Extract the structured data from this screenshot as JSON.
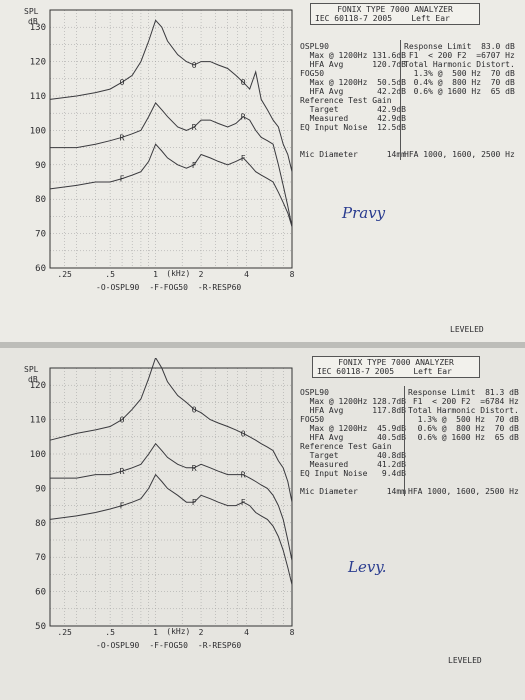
{
  "reports": [
    {
      "header": {
        "title": "FONIX TYPE 7000 ANALYZER",
        "standard": "IEC 60118-7 2005",
        "ear": "Left Ear"
      },
      "chart_data": {
        "type": "line",
        "ylabel_top": "SPL",
        "ylabel_unit": "dB",
        "xlabel": "(kHz)",
        "x_scale": "log",
        "xlim": [
          0.2,
          8
        ],
        "ylim": [
          60,
          135
        ],
        "y_ticks": [
          60,
          70,
          80,
          90,
          100,
          110,
          120,
          130
        ],
        "x_ticks": [
          {
            "v": 0.25,
            "label": ".25"
          },
          {
            "v": 0.5,
            "label": ".5"
          },
          {
            "v": 1,
            "label": "1"
          },
          {
            "v": 2,
            "label": "2"
          },
          {
            "v": 4,
            "label": "4"
          },
          {
            "v": 8,
            "label": "8"
          }
        ],
        "grid": true,
        "legend": [
          "-O-OSPL90",
          "-F-FOG50",
          "-R-RESP60"
        ],
        "series": [
          {
            "marker": "O",
            "x": [
              0.2,
              0.3,
              0.4,
              0.5,
              0.6,
              0.7,
              0.8,
              0.9,
              1.0,
              1.1,
              1.2,
              1.4,
              1.6,
              1.8,
              2.0,
              2.3,
              2.6,
              3.0,
              3.4,
              3.8,
              4.2,
              4.6,
              5.0,
              5.5,
              6.0,
              6.5,
              7.0,
              7.5,
              8.0
            ],
            "y": [
              109,
              110,
              111,
              112,
              114,
              116,
              120,
              126,
              132,
              130,
              126,
              122,
              120,
              119,
              120,
              120,
              119,
              118,
              116,
              114,
              112,
              117,
              109,
              106,
              103,
              101,
              96,
              93,
              88
            ]
          },
          {
            "marker": "R",
            "x": [
              0.2,
              0.3,
              0.4,
              0.5,
              0.6,
              0.7,
              0.8,
              0.9,
              1.0,
              1.1,
              1.2,
              1.4,
              1.6,
              1.8,
              2.0,
              2.3,
              2.6,
              3.0,
              3.4,
              3.8,
              4.2,
              4.6,
              5.0,
              5.5,
              6.0,
              6.5,
              7.0,
              7.5,
              8.0
            ],
            "y": [
              95,
              95,
              96,
              97,
              98,
              99,
              100,
              104,
              108,
              106,
              104,
              101,
              100,
              101,
              103,
              103,
              102,
              101,
              102,
              104,
              103,
              100,
              98,
              97,
              96,
              90,
              84,
              78,
              72
            ]
          },
          {
            "marker": "F",
            "x": [
              0.2,
              0.3,
              0.4,
              0.5,
              0.6,
              0.7,
              0.8,
              0.9,
              1.0,
              1.1,
              1.2,
              1.4,
              1.6,
              1.8,
              2.0,
              2.3,
              2.6,
              3.0,
              3.4,
              3.8,
              4.2,
              4.6,
              5.0,
              5.5,
              6.0,
              6.5,
              7.0,
              7.5,
              8.0
            ],
            "y": [
              83,
              84,
              85,
              85,
              86,
              87,
              88,
              91,
              96,
              94,
              92,
              90,
              89,
              90,
              93,
              92,
              91,
              90,
              91,
              92,
              90,
              88,
              87,
              86,
              85,
              82,
              79,
              76,
              72
            ]
          }
        ]
      },
      "info_left": [
        "OSPL90",
        "  Max @ 1200Hz 131.6dB",
        "  HFA Avg      120.7dB",
        "FOG50",
        "  Max @ 1200Hz  50.5dB",
        "  HFA Avg       42.2dB",
        "Reference Test Gain",
        "  Target        42.9dB",
        "  Measured      42.9dB",
        "EQ Input Noise  12.5dB",
        "",
        "",
        "Mic Diameter      14mm"
      ],
      "info_right": [
        "Response Limit  83.0 dB",
        " F1  < 200 F2  =6707 Hz",
        "Total Harmonic Distort.",
        "  1.3% @  500 Hz  70 dB",
        "  0.4% @  800 Hz  70 dB",
        "  0.6% @ 1600 Hz  65 dB",
        "",
        "",
        "",
        "",
        "",
        "",
        "HFA 1000, 1600, 2500 Hz"
      ],
      "handwriting": "Pravy",
      "leveled": "LEVELED"
    },
    {
      "header": {
        "title": "FONIX TYPE 7000 ANALYZER",
        "standard": "IEC 60118-7 2005",
        "ear": "Left Ear"
      },
      "chart_data": {
        "type": "line",
        "ylabel_top": "SPL",
        "ylabel_unit": "dB",
        "xlabel": "(kHz)",
        "x_scale": "log",
        "xlim": [
          0.2,
          8
        ],
        "ylim": [
          50,
          125
        ],
        "y_ticks": [
          50,
          60,
          70,
          80,
          90,
          100,
          110,
          120
        ],
        "x_ticks": [
          {
            "v": 0.25,
            "label": ".25"
          },
          {
            "v": 0.5,
            "label": ".5"
          },
          {
            "v": 1,
            "label": "1"
          },
          {
            "v": 2,
            "label": "2"
          },
          {
            "v": 4,
            "label": "4"
          },
          {
            "v": 8,
            "label": "8"
          }
        ],
        "grid": true,
        "legend": [
          "-O-OSPL90",
          "-F-FOG50",
          "-R-RESP60"
        ],
        "series": [
          {
            "marker": "O",
            "x": [
              0.2,
              0.3,
              0.4,
              0.5,
              0.6,
              0.7,
              0.8,
              0.9,
              1.0,
              1.1,
              1.2,
              1.4,
              1.6,
              1.8,
              2.0,
              2.3,
              2.6,
              3.0,
              3.4,
              3.8,
              4.2,
              4.6,
              5.0,
              5.5,
              6.0,
              6.5,
              7.0,
              7.5,
              8.0
            ],
            "y": [
              104,
              106,
              107,
              108,
              110,
              113,
              116,
              122,
              128,
              125,
              121,
              117,
              115,
              113,
              112,
              110,
              109,
              108,
              107,
              106,
              105,
              104,
              103,
              102,
              101,
              98,
              96,
              92,
              86
            ]
          },
          {
            "marker": "R",
            "x": [
              0.2,
              0.3,
              0.4,
              0.5,
              0.6,
              0.7,
              0.8,
              0.9,
              1.0,
              1.1,
              1.2,
              1.4,
              1.6,
              1.8,
              2.0,
              2.3,
              2.6,
              3.0,
              3.4,
              3.8,
              4.2,
              4.6,
              5.0,
              5.5,
              6.0,
              6.5,
              7.0,
              7.5,
              8.0
            ],
            "y": [
              93,
              93,
              94,
              94,
              95,
              96,
              97,
              100,
              103,
              101,
              99,
              97,
              96,
              96,
              97,
              96,
              95,
              94,
              94,
              94,
              93,
              92,
              91,
              90,
              88,
              85,
              81,
              75,
              69
            ]
          },
          {
            "marker": "F",
            "x": [
              0.2,
              0.3,
              0.4,
              0.5,
              0.6,
              0.7,
              0.8,
              0.9,
              1.0,
              1.1,
              1.2,
              1.4,
              1.6,
              1.8,
              2.0,
              2.3,
              2.6,
              3.0,
              3.4,
              3.8,
              4.2,
              4.6,
              5.0,
              5.5,
              6.0,
              6.5,
              7.0,
              7.5,
              8.0
            ],
            "y": [
              81,
              82,
              83,
              84,
              85,
              86,
              87,
              90,
              94,
              92,
              90,
              88,
              86,
              86,
              88,
              87,
              86,
              85,
              85,
              86,
              85,
              83,
              82,
              81,
              79,
              76,
              72,
              67,
              62
            ]
          }
        ]
      },
      "info_left": [
        "OSPL90",
        "  Max @ 1200Hz 128.7dB",
        "  HFA Avg      117.8dB",
        "FOG50",
        "  Max @ 1200Hz  45.9dB",
        "  HFA Avg       40.5dB",
        "Reference Test Gain",
        "  Target        40.8dB",
        "  Measured      41.2dB",
        "EQ Input Noise   9.4dB",
        "",
        "Mic Diameter      14mm"
      ],
      "info_right": [
        "Response Limit  81.3 dB",
        " F1  < 200 F2  =6784 Hz",
        "Total Harmonic Distort.",
        "  1.3% @  500 Hz  70 dB",
        "  0.6% @  800 Hz  70 dB",
        "  0.6% @ 1600 Hz  65 dB",
        "",
        "",
        "",
        "",
        "",
        "HFA 1000, 1600, 2500 Hz"
      ],
      "handwriting": "Levy.",
      "leveled": "LEVELED"
    }
  ]
}
